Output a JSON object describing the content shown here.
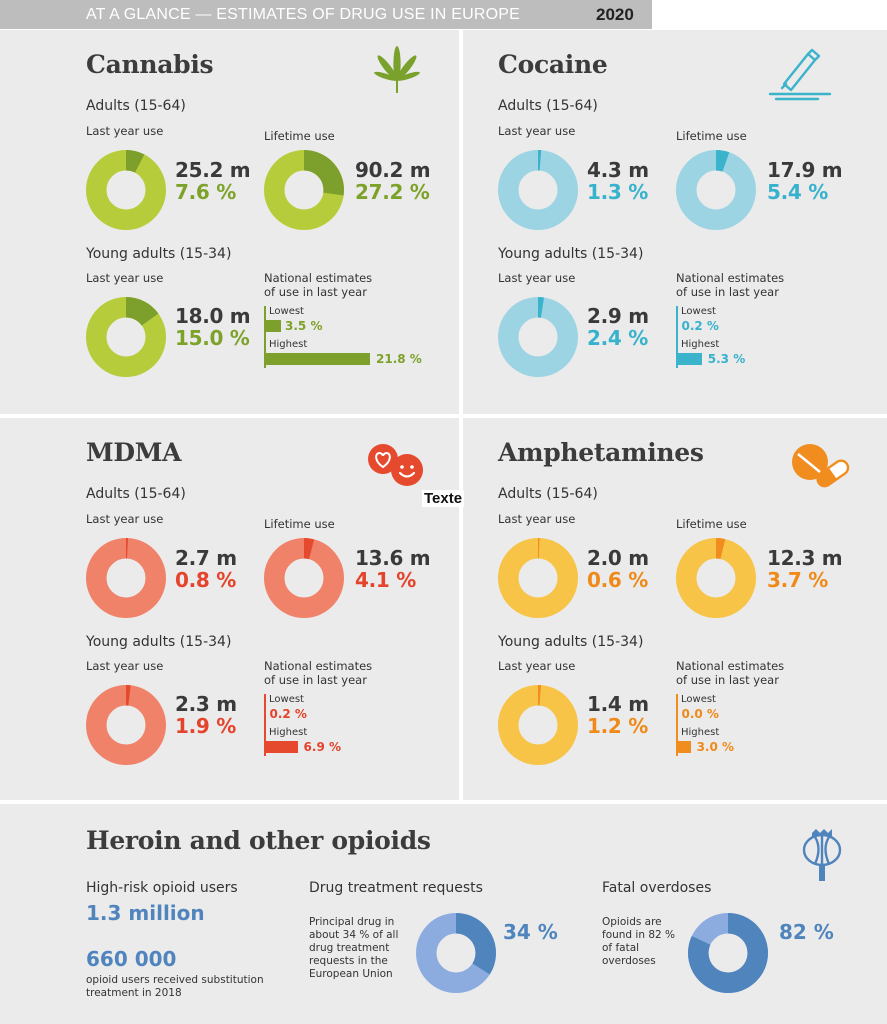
{
  "header": {
    "title": "AT A GLANCE — ESTIMATES OF DRUG USE IN EUROPE",
    "year": "2020"
  },
  "labels": {
    "adults": "Adults (15-64)",
    "young_adults": "Young adults (15-34)",
    "last_year_use": "Last year use",
    "lifetime_use": "Lifetime use",
    "national_l1": "National estimates",
    "national_l2": "of use in last year",
    "lowest": "Lowest",
    "highest": "Highest"
  },
  "colors": {
    "cannabis": {
      "light": "#b7cc3a",
      "dark": "#7da02c",
      "text": "#7da22a"
    },
    "cocaine": {
      "light": "#9dd4e4",
      "dark": "#3ab3cb",
      "text": "#37b2cc"
    },
    "mdma": {
      "light": "#f0826a",
      "dark": "#e64a2e",
      "text": "#e4432c"
    },
    "amphetamines": {
      "light": "#f7c447",
      "dark": "#f08d1e",
      "text": "#ef8a1a"
    },
    "opioids": {
      "light": "#8cace0",
      "dark": "#4f84bd",
      "text": "#4f84bd"
    }
  },
  "stray_label": "Texte",
  "chart_data": [
    {
      "type": "pie",
      "drug": "Cannabis",
      "title": "Cannabis",
      "icon": "cannabis-leaf-icon",
      "adults_last_year": {
        "count": "25.2 m",
        "percent_label": "7.6 %",
        "value": 7.6
      },
      "adults_lifetime": {
        "count": "90.2 m",
        "percent_label": "27.2 %",
        "value": 27.2
      },
      "young_last_year": {
        "count": "18.0 m",
        "percent_label": "15.0 %",
        "value": 15.0
      },
      "national": {
        "lowest_label": "3.5 %",
        "lowest": 3.5,
        "highest_label": "21.8 %",
        "highest": 21.8
      }
    },
    {
      "type": "pie",
      "drug": "Cocaine",
      "title": "Cocaine",
      "icon": "cocaine-straw-icon",
      "adults_last_year": {
        "count": "4.3 m",
        "percent_label": "1.3 %",
        "value": 1.3
      },
      "adults_lifetime": {
        "count": "17.9 m",
        "percent_label": "5.4 %",
        "value": 5.4
      },
      "young_last_year": {
        "count": "2.9 m",
        "percent_label": "2.4 %",
        "value": 2.4
      },
      "national": {
        "lowest_label": "0.2 %",
        "lowest": 0.2,
        "highest_label": "5.3 %",
        "highest": 5.3
      }
    },
    {
      "type": "pie",
      "drug": "MDMA",
      "title": "MDMA",
      "icon": "heart-smiley-pills-icon",
      "adults_last_year": {
        "count": "2.7 m",
        "percent_label": "0.8 %",
        "value": 0.8
      },
      "adults_lifetime": {
        "count": "13.6 m",
        "percent_label": "4.1 %",
        "value": 4.1
      },
      "young_last_year": {
        "count": "2.3 m",
        "percent_label": "1.9 %",
        "value": 1.9
      },
      "national": {
        "lowest_label": "0.2 %",
        "lowest": 0.2,
        "highest_label": "6.9 %",
        "highest": 6.9
      }
    },
    {
      "type": "pie",
      "drug": "Amphetamines",
      "title": "Amphetamines",
      "icon": "pills-icon",
      "adults_last_year": {
        "count": "2.0 m",
        "percent_label": "0.6 %",
        "value": 0.6
      },
      "adults_lifetime": {
        "count": "12.3 m",
        "percent_label": "3.7 %",
        "value": 3.7
      },
      "young_last_year": {
        "count": "1.4 m",
        "percent_label": "1.2 %",
        "value": 1.2
      },
      "national": {
        "lowest_label": "0.0 %",
        "lowest": 0.0,
        "highest_label": "3.0 %",
        "highest": 3.0
      }
    },
    {
      "type": "pie",
      "drug": "Heroin and other opioids",
      "title": "Heroin and other opioids",
      "icon": "poppy-icon",
      "high_risk": {
        "label": "High-risk opioid users",
        "value": "1.3 million"
      },
      "substitution": {
        "value": "660 000",
        "text": "opioid users received substitution treatment in 2018"
      },
      "treatment": {
        "title": "Drug treatment requests",
        "text": "Principal drug in about 34 % of all drug treatment requests in the European Union",
        "percent_label": "34 %",
        "value": 34
      },
      "overdoses": {
        "title": "Fatal overdoses",
        "text": "Opioids are found in 82 % of fatal overdoses",
        "percent_label": "82 %",
        "value": 82
      }
    }
  ]
}
